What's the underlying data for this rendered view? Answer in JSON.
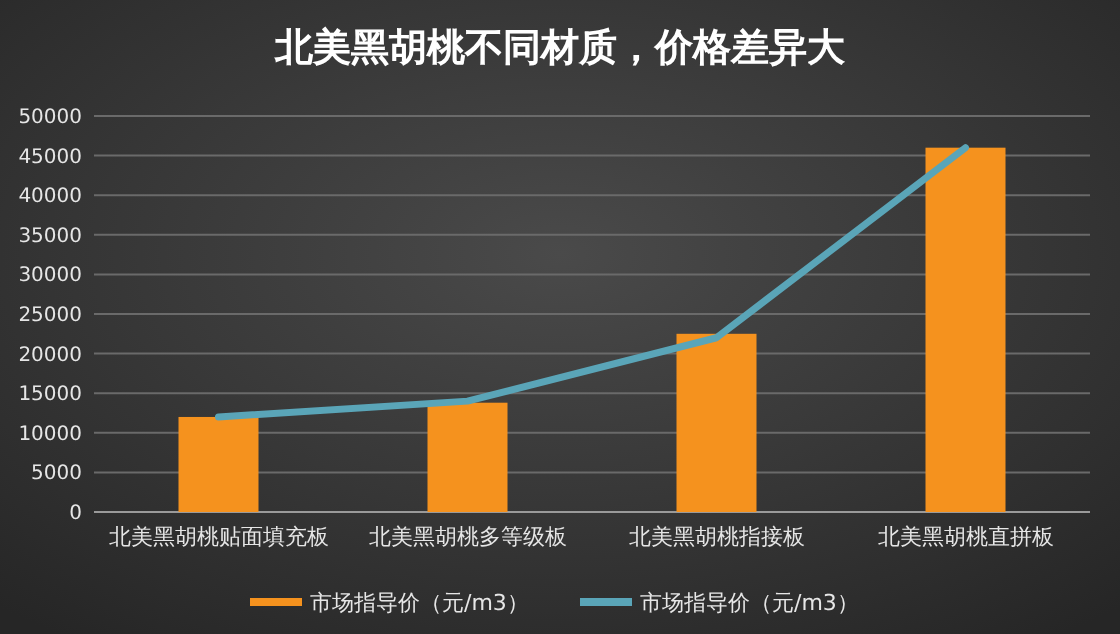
{
  "chart_data": {
    "type": "bar",
    "title": "北美黑胡桃不同材质，价格差异大",
    "categories": [
      "北美黑胡桃贴面填充板",
      "北美黑胡桃多等级板",
      "北美黑胡桃指接板",
      "北美黑胡桃直拼板"
    ],
    "series": [
      {
        "name": "市场指导价（元/m3）",
        "color": "#f5921e",
        "values": [
          12000,
          13800,
          22500,
          46000
        ]
      },
      {
        "name": "市场指导价（元/m3）",
        "type": "line",
        "color": "#5aa5b8",
        "values": [
          12000,
          14000,
          22000,
          46000
        ]
      }
    ],
    "ylim": [
      0,
      50000
    ],
    "yticks": [
      0,
      5000,
      10000,
      15000,
      20000,
      25000,
      30000,
      35000,
      40000,
      45000,
      50000
    ],
    "grid": "y",
    "legend": "bottom",
    "marker": "none"
  }
}
